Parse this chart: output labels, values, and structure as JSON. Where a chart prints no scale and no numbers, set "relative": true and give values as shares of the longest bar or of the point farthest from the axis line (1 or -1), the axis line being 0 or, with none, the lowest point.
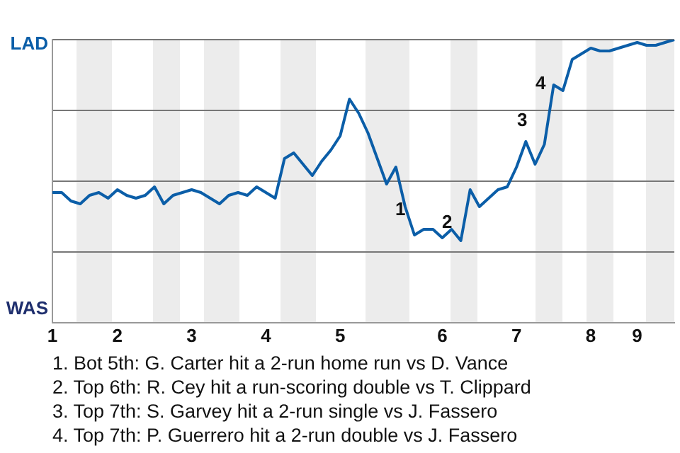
{
  "chart_data": {
    "type": "line",
    "relative": true,
    "categories": [
      "1",
      null,
      null,
      null,
      null,
      null,
      null,
      "2",
      null,
      null,
      null,
      null,
      null,
      null,
      null,
      "3",
      null,
      null,
      null,
      null,
      null,
      null,
      null,
      "4",
      null,
      null,
      null,
      null,
      null,
      null,
      null,
      "5",
      null,
      null,
      null,
      null,
      null,
      null,
      null,
      null,
      null,
      null,
      "6",
      null,
      null,
      null,
      null,
      null,
      null,
      null,
      "7",
      null,
      null,
      null,
      null,
      null,
      null,
      null,
      "8",
      null,
      null,
      null,
      null,
      "9",
      null,
      null,
      null,
      null
    ],
    "series": [
      {
        "color": "#0b5ea8",
        "values": [
          0.46,
          0.46,
          0.43,
          0.42,
          0.45,
          0.46,
          0.44,
          0.47,
          0.45,
          0.44,
          0.45,
          0.48,
          0.42,
          0.45,
          0.46,
          0.47,
          0.46,
          0.44,
          0.42,
          0.45,
          0.46,
          0.45,
          0.48,
          0.46,
          0.44,
          0.58,
          0.6,
          0.56,
          0.52,
          0.57,
          0.61,
          0.66,
          0.79,
          0.74,
          0.67,
          0.58,
          0.49,
          0.55,
          0.41,
          0.31,
          0.33,
          0.33,
          0.3,
          0.33,
          0.29,
          0.47,
          0.41,
          0.44,
          0.47,
          0.48,
          0.55,
          0.64,
          0.56,
          0.63,
          0.84,
          0.82,
          0.93,
          0.95,
          0.97,
          0.96,
          0.96,
          0.97,
          0.98,
          0.99,
          0.98,
          0.98,
          0.99,
          1.0
        ]
      }
    ],
    "grid": "y",
    "marker": "none",
    "line_style": "solid",
    "annotations": [
      "LAD",
      "WAS",
      "1",
      "2",
      "3",
      "4",
      "1. Bot 5th: G. Carter hit a 2-run home run vs D. Vance",
      "2. Top 6th: R. Cey hit a run-scoring double vs T. Clippard",
      "3. Top 7th: S. Garvey hit a 2-run single vs J. Fassero",
      "4. Top 7th: P. Guerrero hit a 2-run double vs J. Fassero"
    ]
  }
}
